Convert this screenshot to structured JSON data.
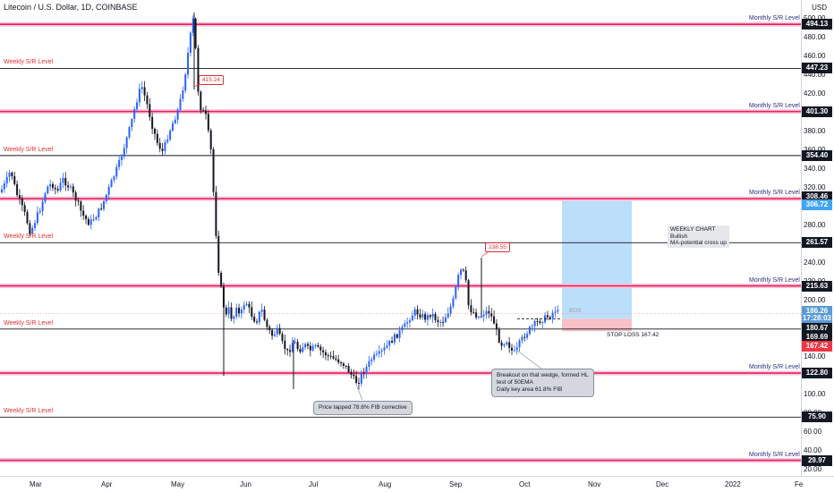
{
  "header": {
    "title": "Litecoin / U.S. Dollar, 1D, COINBASE",
    "currency": "USD"
  },
  "chart_data": {
    "type": "candlestick",
    "symbol": "LTCUSD",
    "ylim": [
      15,
      505
    ],
    "x_ticks": [
      "Mar",
      "Apr",
      "May",
      "Jun",
      "Jul",
      "Aug",
      "Sep",
      "Oct",
      "Nov",
      "Dec",
      "2022",
      "Fe"
    ],
    "y_ticks": [
      20,
      40,
      60,
      80,
      100,
      120,
      140,
      160,
      180,
      200,
      220,
      240,
      260,
      280,
      300,
      320,
      340,
      360,
      380,
      400,
      420,
      440,
      460,
      480,
      500
    ],
    "levels": [
      {
        "price": 494.13,
        "kind": "monthly",
        "label": "Monthly  S/R Level"
      },
      {
        "price": 447.23,
        "kind": "weekly",
        "label": "Weekly S/R Level"
      },
      {
        "price": 401.3,
        "kind": "monthly",
        "label": "Monthly  S/R Level"
      },
      {
        "price": 354.4,
        "kind": "weekly",
        "label": "Weekly S/R Level"
      },
      {
        "price": 308.46,
        "kind": "monthly",
        "label": "Monthly  S/R Level"
      },
      {
        "price": 261.57,
        "kind": "weekly",
        "label": "Weekly S/R Level"
      },
      {
        "price": 215.63,
        "kind": "monthly",
        "label": "Monthly  S/R Level"
      },
      {
        "price": 169.69,
        "kind": "weekly",
        "label": "Weekly S/R Level"
      },
      {
        "price": 122.8,
        "kind": "monthly",
        "label": "Monthly  S/R Level"
      },
      {
        "price": 75.9,
        "kind": "weekly",
        "label": "Weekly S/R Level"
      },
      {
        "price": 29.97,
        "kind": "monthly",
        "label": "Monthly  S/R Level"
      }
    ],
    "price_labels": [
      {
        "text": "494.13",
        "price": 494.13,
        "color": "#131722"
      },
      {
        "text": "447.23",
        "price": 447.23,
        "color": "#131722"
      },
      {
        "text": "401.30",
        "price": 401.3,
        "color": "#131722"
      },
      {
        "text": "354.40",
        "price": 354.4,
        "color": "#131722"
      },
      {
        "text": "308.46",
        "price": 310.5,
        "color": "#131722"
      },
      {
        "text": "306.72",
        "price": 301.5,
        "color": "#42a5f5"
      },
      {
        "text": "261.57",
        "price": 261.57,
        "color": "#131722"
      },
      {
        "text": "215.63",
        "price": 215.63,
        "color": "#131722"
      },
      {
        "text": "186.26",
        "price": 188.5,
        "color": "#5b9bd5"
      },
      {
        "text": "17:28:03",
        "price": 180.5,
        "color": "#5b9bd5"
      },
      {
        "text": "180.67",
        "price": 170.5,
        "color": "#131722"
      },
      {
        "text": "169.69",
        "price": 160.5,
        "color": "#131722"
      },
      {
        "text": "167.42",
        "price": 151.0,
        "color": "#f23645"
      },
      {
        "text": "122.80",
        "price": 122.8,
        "color": "#131722"
      },
      {
        "text": "75.90",
        "price": 75.9,
        "color": "#131722"
      },
      {
        "text": "29.97",
        "price": 29.97,
        "color": "#131722"
      }
    ],
    "annotations": {
      "peak_high": "415.24",
      "sep_high": "238.55",
      "entry_label": "BOS",
      "stop_loss": "STOP LOSS 167.42",
      "weekly_note": [
        "WEEKLY CHART",
        "Bullish",
        "MA-potential cross up"
      ],
      "fib_note": "Price tapped 78.6% FIB corrective",
      "breakout_note": [
        "Breakout on that wedge, formed HL",
        "test of 50EMA",
        "Daily key area 61.8% FIB"
      ]
    },
    "position": {
      "entry": 180.67,
      "target": 306.72,
      "stop": 167.42
    },
    "colors": {
      "up": "#2962ff",
      "down": "#131722",
      "weekly": "#e0312f",
      "monthly": "#e91e63",
      "target_zone": "#bbdefb",
      "stop_zone": "#f8c1c7"
    }
  }
}
